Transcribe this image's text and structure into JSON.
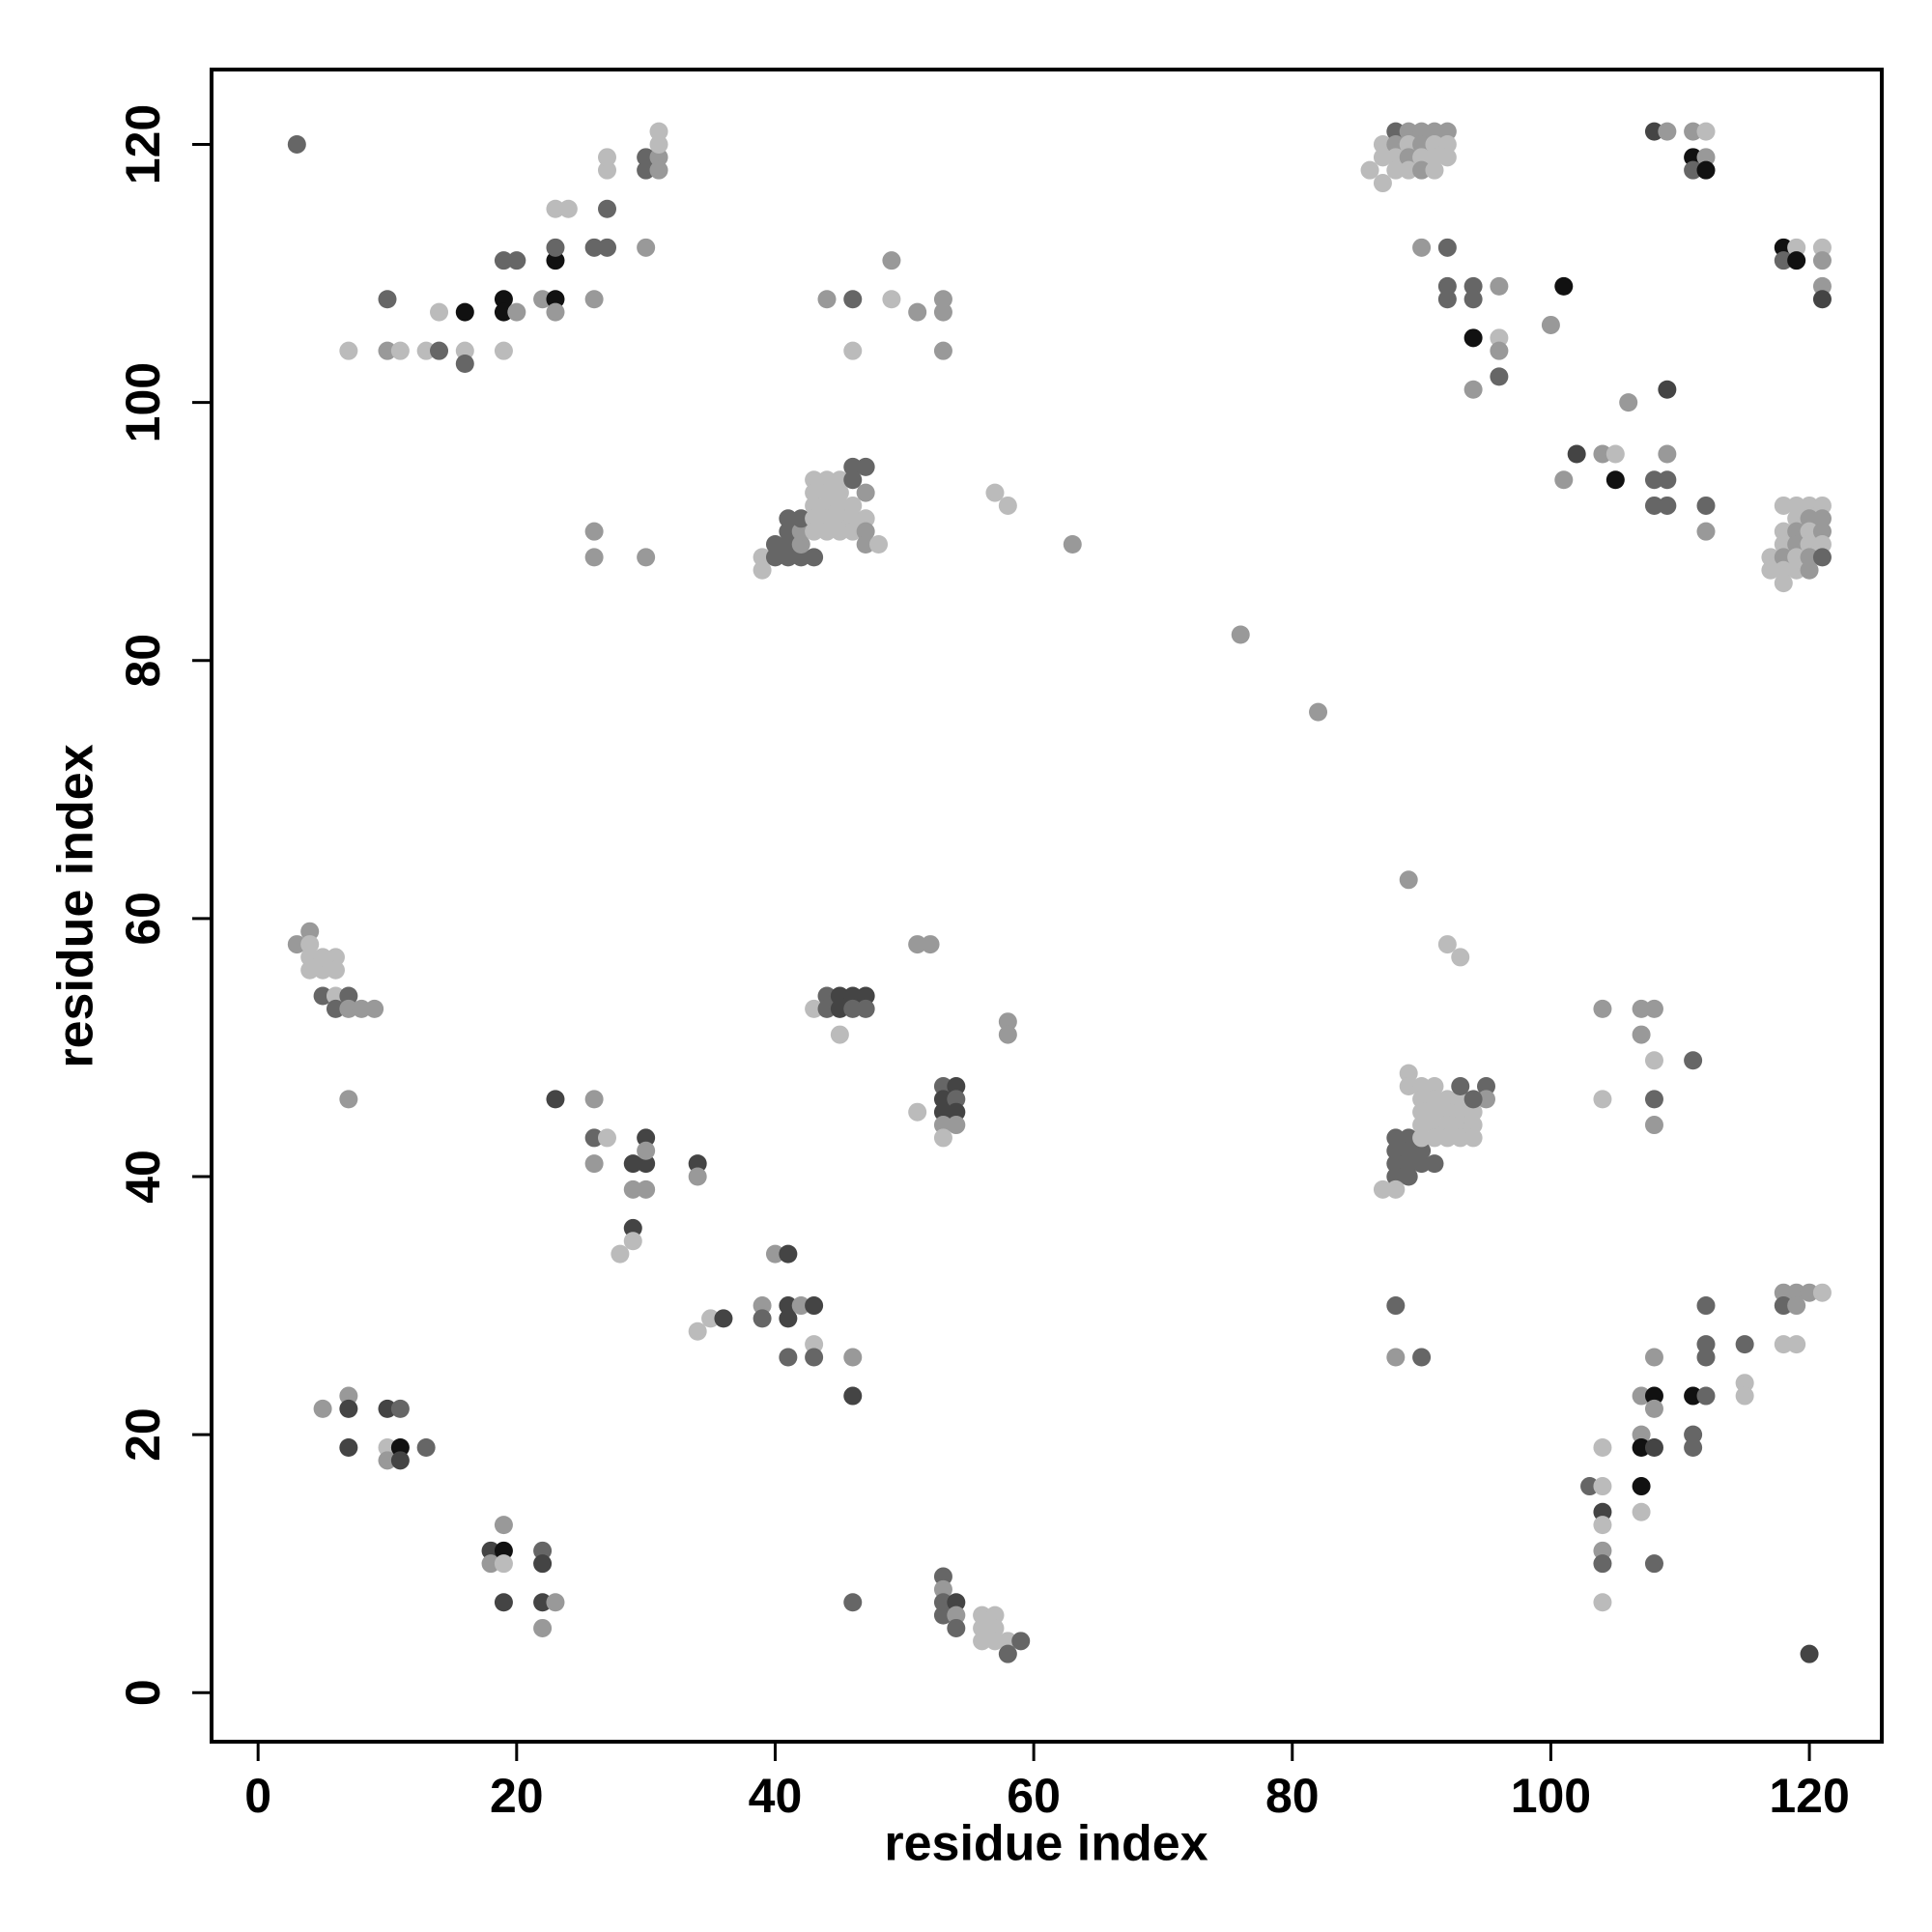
{
  "chart_data": {
    "type": "scatter",
    "xlabel": "residue index",
    "ylabel": "residue index",
    "xlim": [
      -3.6,
      125.6
    ],
    "ylim": [
      -3.8,
      125.8
    ],
    "xticks": [
      0,
      20,
      40,
      60,
      80,
      100,
      120
    ],
    "yticks": [
      0,
      20,
      40,
      60,
      80,
      100,
      120
    ],
    "x": [
      3,
      7,
      10,
      11,
      13,
      14,
      16,
      16,
      19,
      10,
      14,
      16,
      19,
      19,
      19,
      20,
      20,
      22,
      23,
      23,
      23,
      23,
      23,
      24,
      26,
      26,
      27,
      27,
      27,
      27,
      30,
      30,
      30,
      31,
      31,
      31,
      31,
      39,
      39,
      40,
      40,
      41,
      41,
      42,
      43,
      42,
      41,
      42,
      41,
      42,
      43,
      44,
      45,
      43,
      44,
      45,
      43,
      44,
      45,
      46,
      43,
      44,
      45,
      46,
      47,
      43,
      44,
      45,
      46,
      47,
      47,
      48,
      46,
      47,
      46,
      47,
      44,
      46,
      46,
      49,
      49,
      51,
      53,
      53,
      53,
      26,
      26,
      30,
      57,
      58,
      63,
      76,
      82,
      88,
      89,
      90,
      91,
      92,
      87,
      88,
      89,
      90,
      91,
      92,
      87,
      88,
      89,
      90,
      91,
      92,
      88,
      89,
      90,
      91,
      86,
      87,
      90,
      92,
      92,
      92,
      94,
      94,
      96,
      94,
      96,
      96,
      96,
      94,
      100,
      101,
      108,
      109,
      111,
      112,
      111,
      112,
      111,
      112,
      118,
      118,
      119,
      119,
      121,
      121,
      121,
      121,
      109,
      106,
      102,
      101,
      104,
      105,
      105,
      108,
      109,
      109,
      108,
      109,
      112,
      112,
      118,
      119,
      120,
      121,
      119,
      120,
      121,
      118,
      119,
      120,
      121,
      118,
      119,
      120,
      121,
      117,
      118,
      119,
      120,
      121,
      117,
      118,
      119,
      120,
      118,
      3,
      4,
      4,
      4,
      5,
      4,
      5,
      6,
      6,
      5,
      6,
      7,
      6,
      7,
      8,
      9,
      7,
      43,
      44,
      44,
      45,
      45,
      46,
      46,
      47,
      47,
      45,
      51,
      52,
      58,
      58,
      53,
      54,
      53,
      54,
      53,
      54,
      53,
      54,
      53,
      51,
      23,
      26,
      26,
      27,
      26,
      29,
      30,
      30,
      30,
      29,
      30,
      29,
      29,
      28,
      34,
      34,
      34,
      35,
      36,
      39,
      39,
      40,
      41,
      41,
      41,
      42,
      43,
      43,
      43,
      41,
      46,
      46,
      46,
      5,
      7,
      7,
      7,
      10,
      11,
      10,
      10,
      11,
      11,
      13,
      18,
      18,
      19,
      19,
      19,
      19,
      22,
      22,
      22,
      23,
      22,
      53,
      53,
      53,
      54,
      53,
      54,
      54,
      56,
      57,
      56,
      57,
      56,
      57,
      58,
      58,
      59,
      89,
      92,
      93,
      88,
      88,
      88,
      88,
      89,
      89,
      89,
      89,
      90,
      91,
      90,
      87,
      88,
      89,
      89,
      90,
      91,
      90,
      91,
      92,
      93,
      90,
      91,
      92,
      93,
      94,
      90,
      91,
      92,
      93,
      94,
      90,
      91,
      92,
      93,
      94,
      93,
      95,
      95,
      94,
      104,
      107,
      108,
      107,
      108,
      111,
      104,
      108,
      108,
      88,
      88,
      90,
      118,
      119,
      120,
      121,
      118,
      119,
      118,
      119,
      112,
      112,
      112,
      115,
      115,
      115,
      108,
      107,
      108,
      108,
      107,
      107,
      108,
      111,
      112,
      111,
      111,
      103,
      104,
      104,
      104,
      104,
      104,
      104,
      104,
      107,
      107,
      108,
      120
    ],
    "y": [
      120,
      104,
      104,
      104,
      104,
      104,
      104,
      103,
      104,
      108,
      107,
      107,
      108,
      107,
      111,
      111,
      107,
      108,
      108,
      107,
      111,
      112,
      115,
      115,
      108,
      112,
      112,
      115,
      118,
      119,
      112,
      119,
      118,
      119,
      118,
      120,
      121,
      88,
      87,
      89,
      88,
      89,
      88,
      88,
      88,
      89,
      90,
      90,
      91,
      91,
      94,
      94,
      94,
      93,
      93,
      93,
      92,
      92,
      92,
      92,
      91,
      91,
      91,
      91,
      91,
      90,
      90,
      90,
      90,
      90,
      89,
      89,
      95,
      95,
      94,
      93,
      108,
      108,
      104,
      111,
      108,
      107,
      108,
      107,
      104,
      90,
      88,
      88,
      93,
      92,
      89,
      82,
      76,
      121,
      121,
      121,
      121,
      121,
      120,
      120,
      120,
      120,
      120,
      120,
      119,
      119,
      119,
      119,
      119,
      119,
      118,
      118,
      118,
      118,
      118,
      117,
      112,
      112,
      109,
      108,
      109,
      108,
      109,
      105,
      105,
      104,
      102,
      101,
      106,
      109,
      121,
      121,
      121,
      121,
      119,
      119,
      118,
      118,
      112,
      111,
      112,
      111,
      112,
      111,
      109,
      108,
      101,
      100,
      96,
      94,
      96,
      96,
      94,
      94,
      94,
      96,
      92,
      92,
      92,
      90,
      92,
      92,
      92,
      92,
      91,
      91,
      91,
      90,
      90,
      90,
      90,
      89,
      89,
      89,
      89,
      88,
      88,
      88,
      88,
      88,
      87,
      87,
      87,
      87,
      86,
      58,
      59,
      58,
      57,
      56,
      56,
      57,
      57,
      56,
      54,
      54,
      54,
      53,
      53,
      53,
      53,
      46,
      53,
      54,
      53,
      54,
      53,
      54,
      53,
      54,
      53,
      51,
      58,
      58,
      52,
      51,
      47,
      47,
      46,
      46,
      45,
      45,
      44,
      44,
      43,
      45,
      46,
      46,
      43,
      43,
      41,
      41,
      41,
      43,
      42,
      39,
      39,
      36,
      35,
      34,
      41,
      40,
      28,
      29,
      29,
      30,
      29,
      34,
      34,
      30,
      29,
      30,
      30,
      27,
      26,
      26,
      26,
      23,
      7,
      22,
      23,
      22,
      19,
      22,
      22,
      19,
      18,
      19,
      18,
      19,
      11,
      10,
      11,
      10,
      13,
      7,
      11,
      10,
      7,
      7,
      5,
      9,
      8,
      7,
      7,
      6,
      6,
      5,
      6,
      6,
      5,
      5,
      4,
      4,
      4,
      3,
      4,
      63,
      58,
      57,
      43,
      42,
      41,
      40,
      43,
      42,
      41,
      40,
      41,
      41,
      42,
      39,
      39,
      48,
      47,
      47,
      47,
      46,
      46,
      46,
      46,
      45,
      45,
      45,
      45,
      45,
      44,
      44,
      44,
      44,
      44,
      43,
      43,
      43,
      43,
      43,
      47,
      47,
      46,
      46,
      53,
      53,
      53,
      51,
      49,
      49,
      46,
      46,
      44,
      30,
      26,
      26,
      31,
      31,
      31,
      31,
      30,
      30,
      27,
      27,
      30,
      27,
      26,
      27,
      24,
      23,
      26,
      23,
      23,
      22,
      20,
      19,
      19,
      23,
      23,
      20,
      19,
      16,
      16,
      19,
      14,
      13,
      11,
      10,
      7,
      16,
      14,
      10,
      3
    ],
    "colors": [
      "#666",
      "#bbb",
      "#999",
      "#bbb",
      "#bbb",
      "#666",
      "#bbb",
      "#666",
      "#bbb",
      "#666",
      "#bbb",
      "#111",
      "#111",
      "#111",
      "#666",
      "#666",
      "#999",
      "#999",
      "#111",
      "#999",
      "#111",
      "#666",
      "#bbb",
      "#bbb",
      "#999",
      "#666",
      "#666",
      "#666",
      "#bbb",
      "#bbb",
      "#999",
      "#666",
      "#666",
      "#999",
      "#999",
      "#bbb",
      "#bbb",
      "#bbb",
      "#bbb",
      "#666",
      "#666",
      "#666",
      "#666",
      "#666",
      "#666",
      "#999",
      "#666",
      "#999",
      "#666",
      "#666",
      "#bbb",
      "#bbb",
      "#bbb",
      "#bbb",
      "#bbb",
      "#bbb",
      "#bbb",
      "#bbb",
      "#bbb",
      "#bbb",
      "#bbb",
      "#bbb",
      "#bbb",
      "#bbb",
      "#bbb",
      "#bbb",
      "#bbb",
      "#bbb",
      "#bbb",
      "#999",
      "#999",
      "#bbb",
      "#666",
      "#666",
      "#666",
      "#999",
      "#999",
      "#666",
      "#bbb",
      "#999",
      "#bbb",
      "#999",
      "#999",
      "#999",
      "#999",
      "#999",
      "#999",
      "#999",
      "#bbb",
      "#bbb",
      "#999",
      "#999",
      "#999",
      "#666",
      "#999",
      "#999",
      "#999",
      "#999",
      "#bbb",
      "#999",
      "#bbb",
      "#999",
      "#bbb",
      "#bbb",
      "#bbb",
      "#bbb",
      "#999",
      "#bbb",
      "#bbb",
      "#bbb",
      "#bbb",
      "#bbb",
      "#999",
      "#bbb",
      "#bbb",
      "#bbb",
      "#999",
      "#666",
      "#666",
      "#666",
      "#666",
      "#666",
      "#999",
      "#111",
      "#bbb",
      "#999",
      "#666",
      "#999",
      "#999",
      "#111",
      "#444",
      "#999",
      "#999",
      "#bbb",
      "#111",
      "#999",
      "#666",
      "#111",
      "#111",
      "#666",
      "#bbb",
      "#111",
      "#bbb",
      "#999",
      "#999",
      "#444",
      "#444",
      "#999",
      "#444",
      "#999",
      "#999",
      "#bbb",
      "#111",
      "#666",
      "#666",
      "#999",
      "#666",
      "#666",
      "#666",
      "#999",
      "#bbb",
      "#bbb",
      "#bbb",
      "#bbb",
      "#bbb",
      "#999",
      "#999",
      "#bbb",
      "#999",
      "#bbb",
      "#999",
      "#bbb",
      "#999",
      "#bbb",
      "#bbb",
      "#bbb",
      "#999",
      "#bbb",
      "#999",
      "#666",
      "#bbb",
      "#bbb",
      "#bbb",
      "#999",
      "#bbb",
      "#999",
      "#999",
      "#bbb",
      "#bbb",
      "#bbb",
      "#bbb",
      "#bbb",
      "#bbb",
      "#bbb",
      "#666",
      "#bbb",
      "#666",
      "#666",
      "#999",
      "#999",
      "#999",
      "#999",
      "#bbb",
      "#666",
      "#666",
      "#444",
      "#444",
      "#444",
      "#666",
      "#444",
      "#666",
      "#bbb",
      "#999",
      "#999",
      "#999",
      "#999",
      "#666",
      "#444",
      "#444",
      "#666",
      "#444",
      "#444",
      "#999",
      "#999",
      "#bbb",
      "#bbb",
      "#444",
      "#999",
      "#666",
      "#bbb",
      "#999",
      "#444",
      "#444",
      "#444",
      "#999",
      "#999",
      "#999",
      "#444",
      "#bbb",
      "#bbb",
      "#444",
      "#999",
      "#bbb",
      "#bbb",
      "#444",
      "#999",
      "#666",
      "#999",
      "#444",
      "#444",
      "#444",
      "#999",
      "#444",
      "#bbb",
      "#666",
      "#666",
      "#999",
      "#444",
      "#666",
      "#999",
      "#999",
      "#444",
      "#444",
      "#444",
      "#666",
      "#bbb",
      "#999",
      "#111",
      "#444",
      "#666",
      "#444",
      "#999",
      "#111",
      "#bbb",
      "#999",
      "#444",
      "#666",
      "#444",
      "#444",
      "#999",
      "#999",
      "#666",
      "#999",
      "#666",
      "#444",
      "#666",
      "#999",
      "#666",
      "#bbb",
      "#bbb",
      "#bbb",
      "#bbb",
      "#bbb",
      "#bbb",
      "#bbb",
      "#666",
      "#666",
      "#999",
      "#bbb",
      "#bbb",
      "#666",
      "#666",
      "#666",
      "#666",
      "#666",
      "#666",
      "#666",
      "#666",
      "#666",
      "#666",
      "#666",
      "#bbb",
      "#bbb",
      "#bbb",
      "#bbb",
      "#bbb",
      "#bbb",
      "#bbb",
      "#bbb",
      "#bbb",
      "#bbb",
      "#bbb",
      "#bbb",
      "#bbb",
      "#bbb",
      "#bbb",
      "#bbb",
      "#bbb",
      "#bbb",
      "#bbb",
      "#bbb",
      "#bbb",
      "#bbb",
      "#bbb",
      "#bbb",
      "#bbb",
      "#666",
      "#666",
      "#999",
      "#666",
      "#999",
      "#999",
      "#999",
      "#999",
      "#bbb",
      "#666",
      "#bbb",
      "#666",
      "#999",
      "#666",
      "#999",
      "#666",
      "#999",
      "#999",
      "#999",
      "#bbb",
      "#666",
      "#999",
      "#bbb",
      "#bbb",
      "#666",
      "#666",
      "#666",
      "#666",
      "#bbb",
      "#bbb",
      "#999",
      "#999",
      "#111",
      "#999",
      "#999",
      "#111",
      "#444",
      "#111",
      "#666",
      "#666",
      "#666",
      "#666",
      "#bbb",
      "#bbb",
      "#444",
      "#bbb",
      "#999",
      "#666",
      "#bbb",
      "#111",
      "#bbb",
      "#666",
      "#444"
    ]
  }
}
